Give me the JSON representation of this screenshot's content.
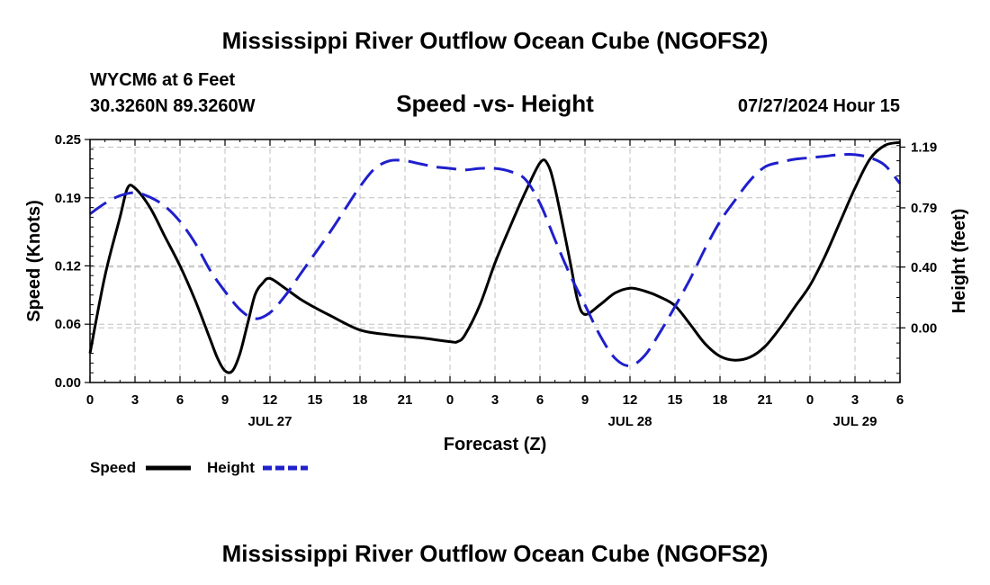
{
  "page": {
    "title": "Mississippi River Outflow Ocean Cube (NGOFS2)",
    "title_repeat": "Mississippi River Outflow Ocean Cube (NGOFS2)",
    "station": "WYCM6 at 6 Feet",
    "coords": "30.3260N  89.3260W",
    "subtitle": "Speed -vs- Height",
    "run_time": "07/27/2024 Hour 15"
  },
  "chart_data": {
    "type": "line",
    "title": "Speed -vs- Height",
    "xlabel": "Forecast (Z)",
    "ylabel": "Speed (Knots)",
    "y2label": "Height (feet)",
    "x_range_hours": [
      0,
      54
    ],
    "x_ticks": [
      {
        "h": 0,
        "label": "0"
      },
      {
        "h": 3,
        "label": "3"
      },
      {
        "h": 6,
        "label": "6"
      },
      {
        "h": 9,
        "label": "9"
      },
      {
        "h": 12,
        "label": "12"
      },
      {
        "h": 15,
        "label": "15"
      },
      {
        "h": 18,
        "label": "18"
      },
      {
        "h": 21,
        "label": "21"
      },
      {
        "h": 24,
        "label": "0"
      },
      {
        "h": 27,
        "label": "3"
      },
      {
        "h": 30,
        "label": "6"
      },
      {
        "h": 33,
        "label": "9"
      },
      {
        "h": 36,
        "label": "12"
      },
      {
        "h": 39,
        "label": "15"
      },
      {
        "h": 42,
        "label": "18"
      },
      {
        "h": 45,
        "label": "21"
      },
      {
        "h": 48,
        "label": "0"
      },
      {
        "h": 51,
        "label": "3"
      },
      {
        "h": 54,
        "label": "6"
      }
    ],
    "date_labels": [
      {
        "h": 12,
        "label": "JUL 27"
      },
      {
        "h": 36,
        "label": "JUL 28"
      },
      {
        "h": 51,
        "label": "JUL 29"
      }
    ],
    "y_left": {
      "range": [
        0,
        0.25
      ],
      "ticks": [
        0.0,
        0.06,
        0.12,
        0.19,
        0.25
      ],
      "tick_labels": [
        "0.00",
        "0.06",
        "0.12",
        "0.19",
        "0.25"
      ]
    },
    "y_right": {
      "range": [
        -0.36,
        1.24
      ],
      "ticks": [
        0.0,
        0.4,
        0.79,
        1.19
      ],
      "tick_labels": [
        "0.00",
        "0.40",
        "0.79",
        "1.19"
      ]
    },
    "grid": true,
    "series": [
      {
        "name": "Speed",
        "axis": "left",
        "color": "#000000",
        "dash": "solid",
        "x": [
          0,
          1,
          2,
          2.5,
          3,
          4,
          5,
          6,
          7,
          8,
          8.5,
          9,
          9.5,
          10,
          10.5,
          11,
          11.5,
          12,
          13,
          14,
          15,
          16,
          18,
          20,
          22,
          24,
          24.5,
          25,
          26,
          27,
          28,
          29,
          30,
          30.5,
          31,
          32,
          32.5,
          33,
          34,
          35,
          36,
          37,
          38,
          39,
          40,
          41,
          42,
          43,
          44,
          45,
          46,
          47,
          48,
          49,
          50,
          51,
          52,
          53,
          54
        ],
        "values": [
          0.03,
          0.11,
          0.17,
          0.2,
          0.2,
          0.18,
          0.15,
          0.12,
          0.085,
          0.045,
          0.025,
          0.012,
          0.012,
          0.03,
          0.06,
          0.09,
          0.102,
          0.107,
          0.097,
          0.086,
          0.077,
          0.069,
          0.054,
          0.049,
          0.046,
          0.042,
          0.042,
          0.049,
          0.08,
          0.123,
          0.16,
          0.195,
          0.226,
          0.225,
          0.2,
          0.125,
          0.085,
          0.07,
          0.08,
          0.092,
          0.097,
          0.094,
          0.088,
          0.079,
          0.06,
          0.04,
          0.027,
          0.023,
          0.026,
          0.037,
          0.056,
          0.078,
          0.1,
          0.13,
          0.165,
          0.2,
          0.23,
          0.244,
          0.247
        ]
      },
      {
        "name": "Height",
        "axis": "right",
        "color": "#1f1fcc",
        "dash": "dashed",
        "x": [
          0,
          1,
          2,
          3,
          4,
          5,
          6,
          7,
          8,
          9,
          10,
          11,
          12,
          13,
          14,
          15,
          16,
          17,
          18,
          19,
          20,
          21,
          22,
          23,
          24,
          25,
          26,
          27,
          28,
          29,
          30,
          31,
          32,
          33,
          34,
          35,
          36,
          37,
          38,
          39,
          40,
          41,
          42,
          43,
          44,
          45,
          46,
          47,
          48,
          49,
          50,
          51,
          52,
          53,
          54
        ],
        "values": [
          0.75,
          0.82,
          0.87,
          0.89,
          0.86,
          0.8,
          0.7,
          0.56,
          0.38,
          0.24,
          0.12,
          0.06,
          0.1,
          0.21,
          0.35,
          0.49,
          0.63,
          0.78,
          0.93,
          1.05,
          1.1,
          1.1,
          1.08,
          1.06,
          1.05,
          1.04,
          1.05,
          1.05,
          1.03,
          0.98,
          0.82,
          0.58,
          0.35,
          0.15,
          -0.05,
          -0.2,
          -0.25,
          -0.18,
          -0.03,
          0.14,
          0.32,
          0.52,
          0.7,
          0.84,
          0.97,
          1.06,
          1.09,
          1.11,
          1.12,
          1.13,
          1.14,
          1.14,
          1.12,
          1.07,
          0.95
        ]
      }
    ],
    "legend": [
      {
        "label": "Speed",
        "color": "#000000",
        "dash": "solid"
      },
      {
        "label": "Height",
        "color": "#1f1fcc",
        "dash": "dashed"
      }
    ]
  }
}
